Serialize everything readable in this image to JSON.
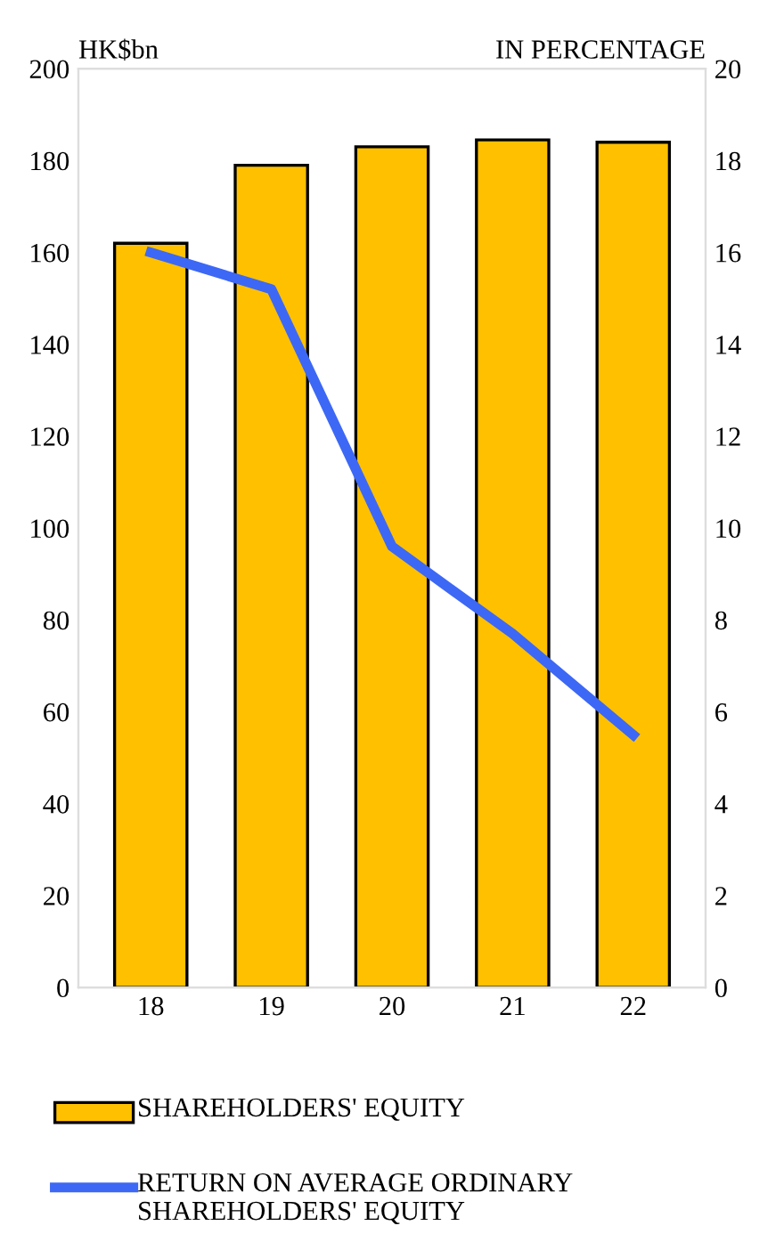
{
  "chart_data": {
    "type": "bar",
    "categories": [
      "18",
      "19",
      "20",
      "21",
      "22"
    ],
    "ylabel": "HK$bn",
    "y2label": "IN PERCENTAGE",
    "ylim": [
      0,
      200
    ],
    "yticks": [
      0,
      20,
      40,
      60,
      80,
      100,
      120,
      140,
      160,
      180,
      200
    ],
    "y2lim": [
      0,
      20
    ],
    "y2ticks": [
      0,
      2,
      4,
      6,
      8,
      10,
      12,
      14,
      16,
      18,
      20
    ],
    "legend": "bottom",
    "grid": false,
    "series": [
      {
        "name": "SHAREHOLDERS' EQUITY",
        "color": "#ffc000",
        "values": [
          162,
          179,
          183,
          184.5,
          184
        ]
      },
      {
        "name": "RETURN ON AVERAGE ORDINARY SHAREHOLDERS' EQUITY",
        "type": "line",
        "axis": "y2",
        "color": "#3d68f5",
        "values": [
          16.0,
          15.2,
          9.6,
          7.7,
          5.5
        ]
      }
    ]
  }
}
